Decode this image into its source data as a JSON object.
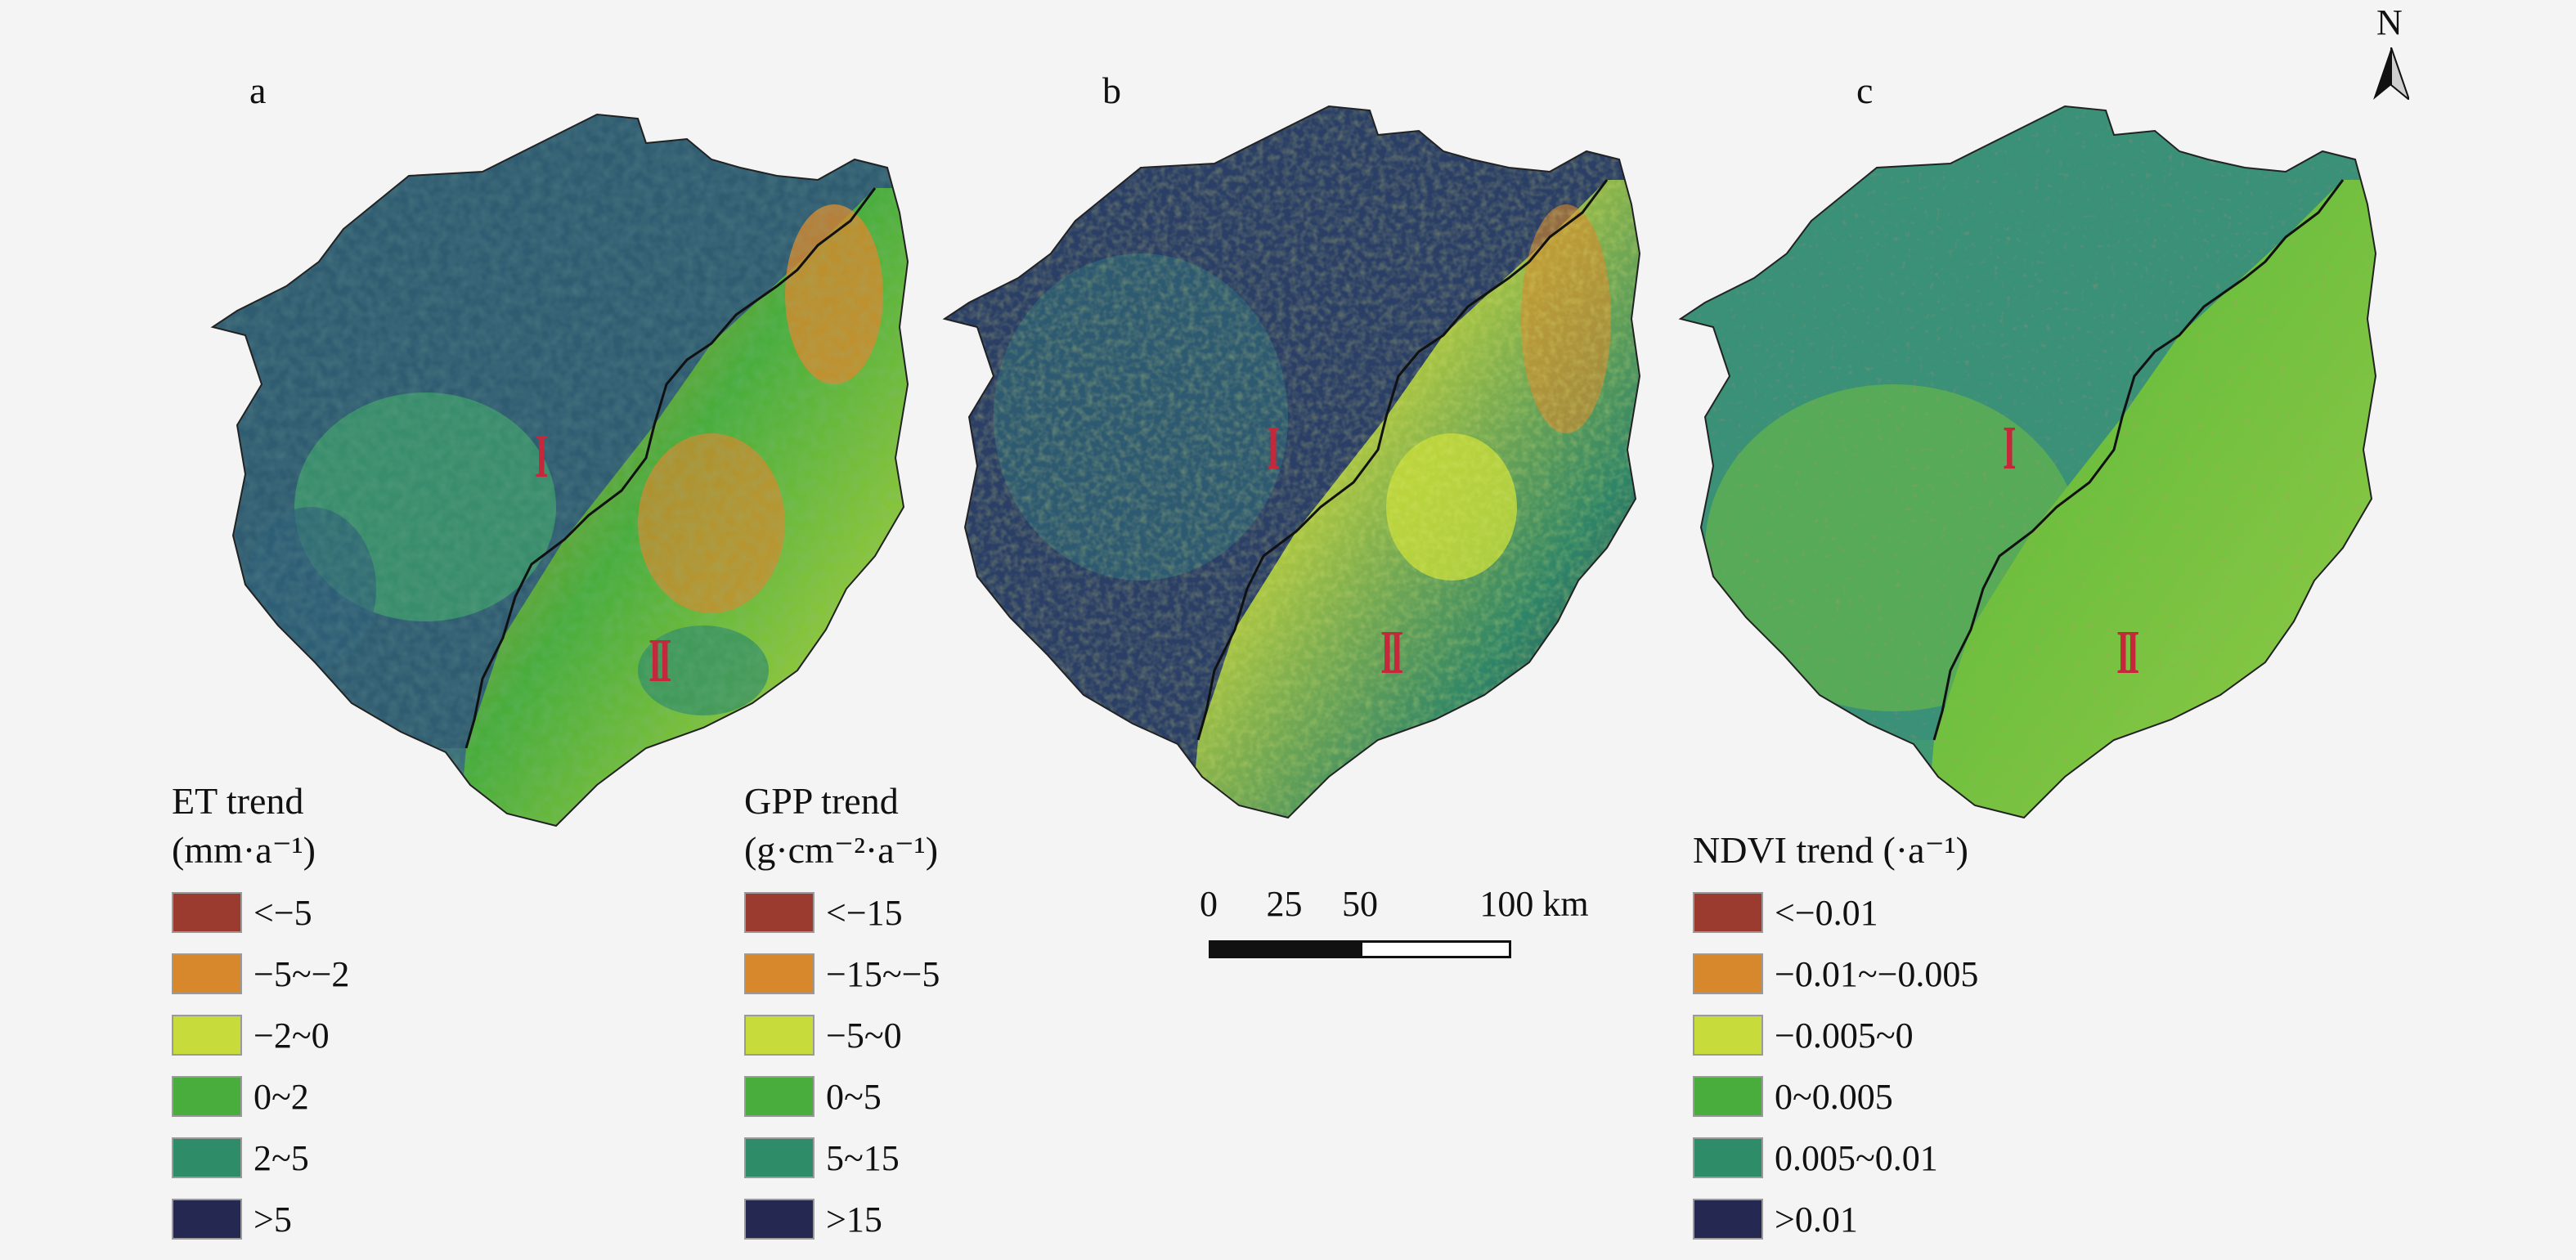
{
  "panels": [
    {
      "letter": "a",
      "legend": {
        "title_line1": "ET trend",
        "title_line2": "(mm·a⁻¹)",
        "items": [
          {
            "label": "<−5",
            "color": "#9b3b30"
          },
          {
            "label": "−5~−2",
            "color": "#d8882c"
          },
          {
            "label": "−2~0",
            "color": "#c7dc3a"
          },
          {
            "label": "0~2",
            "color": "#48ad3c"
          },
          {
            "label": "2~5",
            "color": "#2f8c68"
          },
          {
            "label": ">5",
            "color": "#252850"
          }
        ]
      }
    },
    {
      "letter": "b",
      "legend": {
        "title_line1": "GPP trend",
        "title_line2": "(g·cm⁻²·a⁻¹)",
        "items": [
          {
            "label": "<−15",
            "color": "#9b3b30"
          },
          {
            "label": "−15~−5",
            "color": "#d8882c"
          },
          {
            "label": "−5~0",
            "color": "#c7dc3a"
          },
          {
            "label": "0~5",
            "color": "#48ad3c"
          },
          {
            "label": "5~15",
            "color": "#2f8c68"
          },
          {
            "label": ">15",
            "color": "#252850"
          }
        ]
      }
    },
    {
      "letter": "c",
      "legend": {
        "title_line1": "NDVI trend (·a⁻¹)",
        "title_line2": "",
        "items": [
          {
            "label": "<−0.01",
            "color": "#9b3b30"
          },
          {
            "label": "−0.01~−0.005",
            "color": "#d8882c"
          },
          {
            "label": "−0.005~0",
            "color": "#c7dc3a"
          },
          {
            "label": "0~0.005",
            "color": "#48ad3c"
          },
          {
            "label": "0.005~0.01",
            "color": "#2f8c68"
          },
          {
            "label": ">0.01",
            "color": "#252850"
          }
        ]
      }
    }
  ],
  "zones": {
    "zone1": "I",
    "zone2": "II"
  },
  "north_arrow": "N",
  "scale": {
    "labels": [
      "0",
      "25",
      "50",
      "100 km"
    ],
    "values_km": [
      0,
      25,
      50,
      100
    ]
  }
}
